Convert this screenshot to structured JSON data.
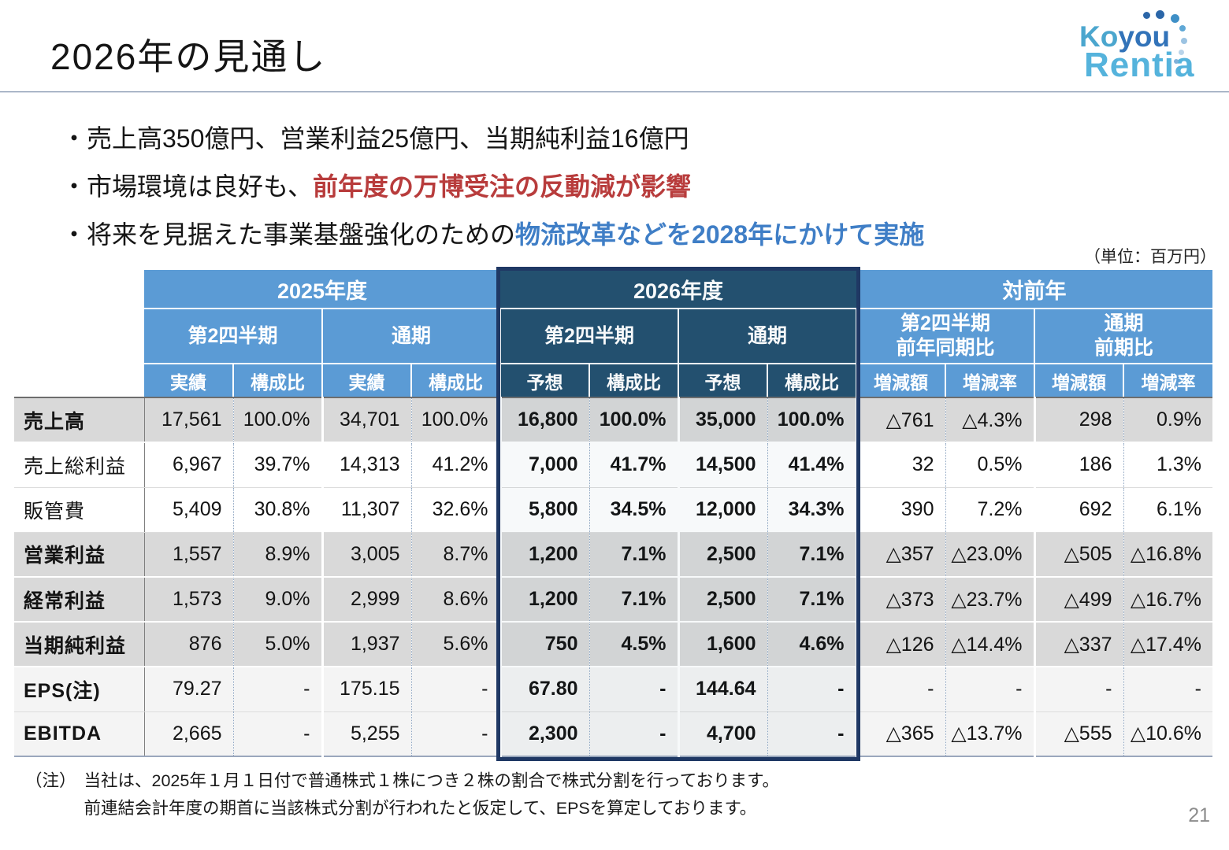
{
  "header": {
    "title": "2026年の見通し"
  },
  "logo": {
    "text_top_a": "Ko",
    "text_top_b": "you",
    "text_bottom": "Rentia"
  },
  "bullets": [
    {
      "plain": "・売上高350億円、営業利益25億円、当期純利益16億円",
      "highlight": "",
      "highlight_color": ""
    },
    {
      "plain": "・市場環境は良好も、",
      "highlight": "前年度の万博受注の反動減が影響",
      "highlight_color": "#b83c3c"
    },
    {
      "plain": "・将来を見据えた事業基盤強化のための",
      "highlight": "物流改革などを2028年にかけて実施",
      "highlight_color": "#3f7ec6"
    }
  ],
  "unit_note": "（単位：百万円）",
  "table": {
    "groups": [
      {
        "label": "2025年度",
        "sub": [
          {
            "label": "第2四半期",
            "cols": [
              "実績",
              "構成比"
            ]
          },
          {
            "label": "通期",
            "cols": [
              "実績",
              "構成比"
            ]
          }
        ]
      },
      {
        "label": "2026年度",
        "sub": [
          {
            "label": "第2四半期",
            "cols": [
              "予想",
              "構成比"
            ]
          },
          {
            "label": "通期",
            "cols": [
              "予想",
              "構成比"
            ]
          }
        ]
      },
      {
        "label": "対前年",
        "sub": [
          {
            "label": "第2四半期\n前年同期比",
            "cols": [
              "増減額",
              "増減率"
            ]
          },
          {
            "label": "通期\n前期比",
            "cols": [
              "増減額",
              "増減率"
            ]
          }
        ]
      }
    ],
    "rows": [
      {
        "label": "売上高",
        "emphasis": true,
        "shade": true,
        "light": false,
        "cells": [
          "17,561",
          "100.0%",
          "34,701",
          "100.0%",
          "16,800",
          "100.0%",
          "35,000",
          "100.0%",
          "△761",
          "△4.3%",
          "298",
          "0.9%"
        ]
      },
      {
        "label": "売上総利益",
        "emphasis": false,
        "shade": false,
        "light": false,
        "cells": [
          "6,967",
          "39.7%",
          "14,313",
          "41.2%",
          "7,000",
          "41.7%",
          "14,500",
          "41.4%",
          "32",
          "0.5%",
          "186",
          "1.3%"
        ]
      },
      {
        "label": "販管費",
        "emphasis": false,
        "shade": false,
        "light": false,
        "cells": [
          "5,409",
          "30.8%",
          "11,307",
          "32.6%",
          "5,800",
          "34.5%",
          "12,000",
          "34.3%",
          "390",
          "7.2%",
          "692",
          "6.1%"
        ]
      },
      {
        "label": "営業利益",
        "emphasis": true,
        "shade": true,
        "light": false,
        "cells": [
          "1,557",
          "8.9%",
          "3,005",
          "8.7%",
          "1,200",
          "7.1%",
          "2,500",
          "7.1%",
          "△357",
          "△23.0%",
          "△505",
          "△16.8%"
        ]
      },
      {
        "label": "経常利益",
        "emphasis": true,
        "shade": true,
        "light": false,
        "cells": [
          "1,573",
          "9.0%",
          "2,999",
          "8.6%",
          "1,200",
          "7.1%",
          "2,500",
          "7.1%",
          "△373",
          "△23.7%",
          "△499",
          "△16.7%"
        ]
      },
      {
        "label": "当期純利益",
        "emphasis": true,
        "shade": true,
        "light": false,
        "cells": [
          "876",
          "5.0%",
          "1,937",
          "5.6%",
          "750",
          "4.5%",
          "1,600",
          "4.6%",
          "△126",
          "△14.4%",
          "△337",
          "△17.4%"
        ]
      },
      {
        "label": "EPS(注)",
        "emphasis": true,
        "shade": false,
        "light": true,
        "cells": [
          "79.27",
          "-",
          "175.15",
          "-",
          "67.80",
          "-",
          "144.64",
          "-",
          "-",
          "-",
          "-",
          "-"
        ]
      },
      {
        "label": "EBITDA",
        "emphasis": true,
        "shade": false,
        "light": true,
        "cells": [
          "2,665",
          "-",
          "5,255",
          "-",
          "2,300",
          "-",
          "4,700",
          "-",
          "△365",
          "△13.7%",
          "△555",
          "△10.6%"
        ]
      }
    ]
  },
  "footnote": {
    "prefix": "（注）",
    "line1": "当社は、2025年１月１日付で普通株式１株につき２株の割合で株式分割を行っております。",
    "line2": "前連結会計年度の期首に当該株式分割が行われたと仮定して、EPSを算定しております。"
  },
  "page_number": "21",
  "colors": {
    "header_blue": "#5b9bd5",
    "header_navy": "#24506f",
    "highlight_box_border": "#1f3864",
    "red_highlight": "#b83c3c",
    "blue_highlight": "#3f7ec6",
    "row_shade": "#d9d9d9"
  }
}
